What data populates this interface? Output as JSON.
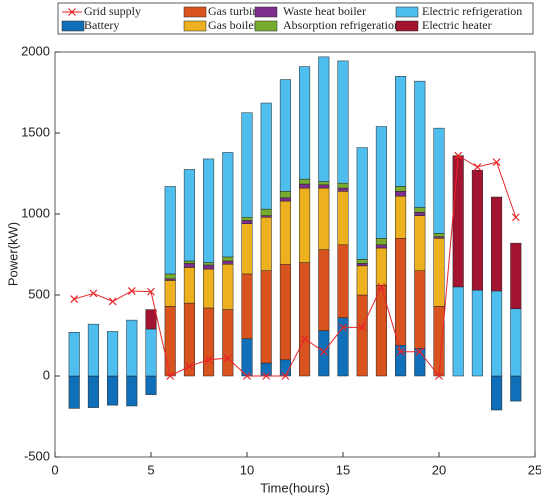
{
  "chart_data": {
    "type": "bar",
    "x_label": "Time(hours)",
    "y_label": "Power(kW)",
    "xlim": [
      0,
      25
    ],
    "xticks": [
      0,
      5,
      10,
      15,
      20,
      25
    ],
    "ylim": [
      -500,
      2000
    ],
    "yticks": [
      -500,
      0,
      500,
      1000,
      1500,
      2000
    ],
    "x": [
      1,
      2,
      3,
      4,
      5,
      6,
      7,
      8,
      9,
      10,
      11,
      12,
      13,
      14,
      15,
      16,
      17,
      18,
      19,
      20,
      21,
      22,
      23,
      24
    ],
    "series": [
      {
        "name": "Grid supply",
        "type": "line",
        "color": "#e8262a",
        "values": [
          475,
          510,
          460,
          525,
          520,
          0,
          60,
          100,
          110,
          0,
          0,
          0,
          230,
          150,
          300,
          300,
          550,
          150,
          150,
          0,
          1360,
          1290,
          1320,
          980
        ]
      },
      {
        "name": "Battery",
        "type": "bar",
        "color": "#0f6fb8",
        "values": [
          -200,
          -195,
          -180,
          -185,
          -115,
          0,
          0,
          0,
          0,
          230,
          80,
          100,
          0,
          280,
          360,
          0,
          0,
          190,
          170,
          0,
          0,
          0,
          -210,
          -155
        ]
      },
      {
        "name": "Gas turbine",
        "type": "bar",
        "color": "#d9531e",
        "values": [
          0,
          0,
          0,
          0,
          0,
          430,
          450,
          420,
          410,
          400,
          570,
          590,
          700,
          500,
          450,
          500,
          560,
          660,
          480,
          430,
          0,
          0,
          0,
          0
        ]
      },
      {
        "name": "Gas boiler",
        "type": "bar",
        "color": "#edb120",
        "values": [
          0,
          0,
          0,
          0,
          0,
          160,
          220,
          240,
          280,
          310,
          330,
          390,
          460,
          380,
          330,
          180,
          230,
          260,
          340,
          420,
          0,
          0,
          0,
          0
        ]
      },
      {
        "name": "Waste heat boiler",
        "type": "bar",
        "color": "#7e2f8e",
        "values": [
          0,
          0,
          0,
          0,
          0,
          10,
          25,
          25,
          20,
          20,
          10,
          20,
          25,
          20,
          20,
          15,
          20,
          30,
          20,
          10,
          0,
          0,
          0,
          0
        ]
      },
      {
        "name": "Absorption refrigeration",
        "type": "bar",
        "color": "#77ac30",
        "values": [
          0,
          0,
          0,
          0,
          0,
          30,
          15,
          15,
          25,
          20,
          40,
          40,
          30,
          20,
          30,
          25,
          40,
          30,
          30,
          20,
          0,
          0,
          0,
          0
        ]
      },
      {
        "name": "Electric refrigeration",
        "type": "bar",
        "color": "#4dbeee",
        "values": [
          270,
          320,
          275,
          345,
          290,
          540,
          565,
          640,
          645,
          645,
          655,
          690,
          695,
          770,
          755,
          690,
          690,
          680,
          780,
          650,
          550,
          530,
          525,
          415
        ]
      },
      {
        "name": "Electric heater",
        "type": "bar",
        "color": "#a2142f",
        "values": [
          0,
          0,
          0,
          0,
          120,
          0,
          0,
          0,
          0,
          0,
          0,
          0,
          0,
          0,
          0,
          0,
          0,
          0,
          0,
          0,
          810,
          740,
          580,
          405
        ]
      }
    ]
  }
}
